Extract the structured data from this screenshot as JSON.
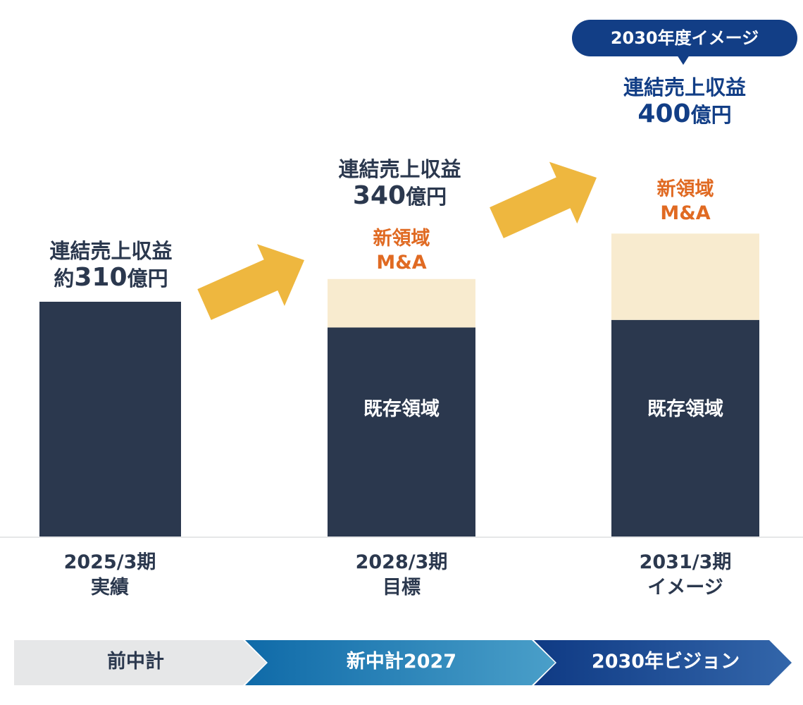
{
  "chart_data": {
    "type": "bar",
    "stacked": true,
    "categories": [
      {
        "year": "2025/3期",
        "sub": "実績"
      },
      {
        "year": "2028/3期",
        "sub": "目標"
      },
      {
        "year": "2031/3期",
        "sub": "イメージ"
      }
    ],
    "series": [
      {
        "name": "既存領域",
        "color": "#2b384e",
        "values": [
          310,
          276,
          286
        ]
      },
      {
        "name": "新領域 M&A",
        "line1": "新領域",
        "line2": "M&A",
        "color": "#f8ebcf",
        "values": [
          0,
          64,
          114
        ]
      }
    ],
    "totals": [
      {
        "title": "連結売上収益",
        "prefix": "約",
        "value": "310",
        "unit": "億円"
      },
      {
        "title": "連結売上収益",
        "prefix": "",
        "value": "340",
        "unit": "億円"
      },
      {
        "title": "連結売上収益",
        "prefix": "",
        "value": "400",
        "unit": "億円"
      }
    ],
    "badge": "2030年度イメージ",
    "arrow_color": "#eeb73f",
    "phases": [
      {
        "label": "前中計",
        "color": "#e6e7e8",
        "text_color": "#2b384e"
      },
      {
        "label": "新中計2027",
        "color": "#1a7fb5",
        "text_color": "#ffffff"
      },
      {
        "label": "2030年ビジョン",
        "color": "#123e86",
        "text_color": "#ffffff"
      }
    ]
  }
}
